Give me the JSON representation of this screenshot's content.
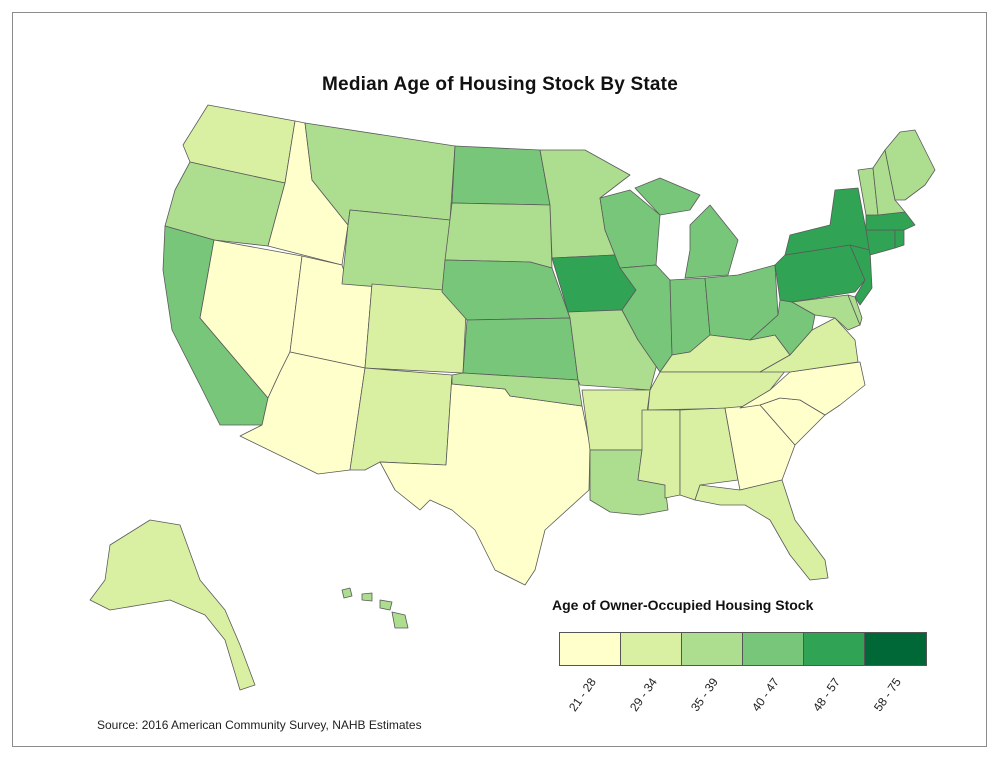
{
  "title": "Median Age of Housing Stock By State",
  "legend": {
    "title": "Age of Owner-Occupied Housing Stock",
    "classes": [
      {
        "label": "21 - 28",
        "color": "#ffffcc"
      },
      {
        "label": "29 - 34",
        "color": "#d9f0a3"
      },
      {
        "label": "35 - 39",
        "color": "#addd8e"
      },
      {
        "label": "40 - 47",
        "color": "#78c679"
      },
      {
        "label": "48 - 57",
        "color": "#31a354"
      },
      {
        "label": "58 - 75",
        "color": "#006837"
      }
    ]
  },
  "source": "Source: 2016 American Community Survey, NAHB Estimates",
  "states": {
    "WA": 2,
    "OR": 3,
    "CA": 4,
    "NV": 1,
    "ID": 1,
    "UT": 1,
    "AZ": 1,
    "MT": 3,
    "WY": 3,
    "CO": 2,
    "NM": 2,
    "TX": 1,
    "ND": 4,
    "SD": 3,
    "NE": 4,
    "KS": 4,
    "OK": 3,
    "MN": 3,
    "IA": 5,
    "MO": 3,
    "AR": 2,
    "LA": 3,
    "WI": 4,
    "IL": 4,
    "MI": 4,
    "IN": 4,
    "OH": 4,
    "KY": 2,
    "TN": 2,
    "MS": 2,
    "AL": 2,
    "GA": 1,
    "FL": 2,
    "SC": 1,
    "NC": 1,
    "VA": 2,
    "WV": 4,
    "PA": 5,
    "NY": 5,
    "VT": 3,
    "NH": 3,
    "ME": 3,
    "MA": 5,
    "CT": 5,
    "RI": 5,
    "NJ": 5,
    "DE": 3,
    "MD": 3,
    "AK": 2,
    "HI": 3
  }
}
